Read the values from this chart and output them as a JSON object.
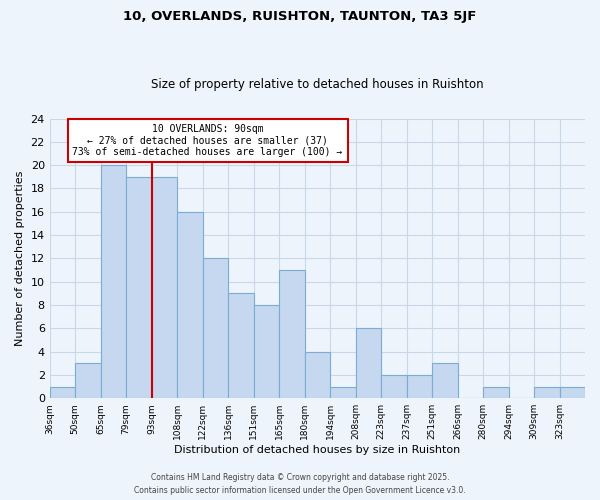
{
  "title": "10, OVERLANDS, RUISHTON, TAUNTON, TA3 5JF",
  "subtitle": "Size of property relative to detached houses in Ruishton",
  "xlabel": "Distribution of detached houses by size in Ruishton",
  "ylabel": "Number of detached properties",
  "bar_labels": [
    "36sqm",
    "50sqm",
    "65sqm",
    "79sqm",
    "93sqm",
    "108sqm",
    "122sqm",
    "136sqm",
    "151sqm",
    "165sqm",
    "180sqm",
    "194sqm",
    "208sqm",
    "223sqm",
    "237sqm",
    "251sqm",
    "266sqm",
    "280sqm",
    "294sqm",
    "309sqm",
    "323sqm"
  ],
  "bar_values": [
    1,
    3,
    20,
    19,
    19,
    16,
    12,
    9,
    8,
    11,
    4,
    1,
    6,
    2,
    2,
    3,
    0,
    1,
    0,
    1,
    1
  ],
  "bar_color": "#c5d8f0",
  "bar_edge_color": "#7badd4",
  "grid_color": "#c8d8e8",
  "background_color": "#eef4fb",
  "vline_color": "#cc0000",
  "annotation_text": "10 OVERLANDS: 90sqm\n← 27% of detached houses are smaller (37)\n73% of semi-detached houses are larger (100) →",
  "annotation_box_color": "#ffffff",
  "annotation_box_edge": "#cc0000",
  "ylim": [
    0,
    24
  ],
  "yticks": [
    0,
    2,
    4,
    6,
    8,
    10,
    12,
    14,
    16,
    18,
    20,
    22,
    24
  ],
  "footer_line1": "Contains HM Land Registry data © Crown copyright and database right 2025.",
  "footer_line2": "Contains public sector information licensed under the Open Government Licence v3.0."
}
